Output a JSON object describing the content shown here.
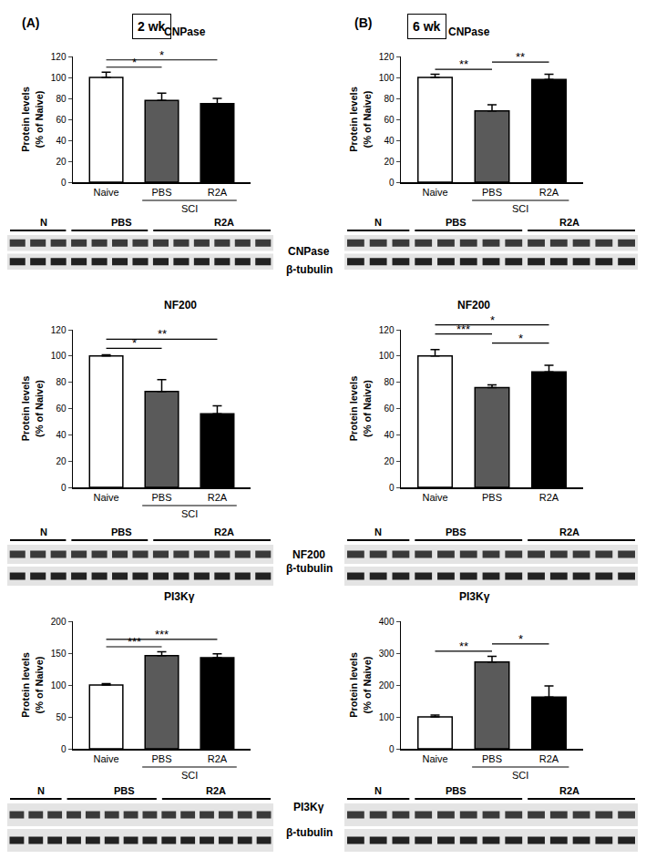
{
  "panels": [
    {
      "label": "(A)",
      "title": "2 wk"
    },
    {
      "label": "(B)",
      "title": "6 wk"
    }
  ],
  "chart_data": [
    {
      "type": "bar",
      "title": "CNPase",
      "categories": [
        "Naive",
        "PBS",
        "R2A"
      ],
      "group": {
        "label": "SCI",
        "members": [
          "PBS",
          "R2A"
        ]
      },
      "values": [
        100,
        78,
        75
      ],
      "errors": [
        5,
        7,
        5
      ],
      "colors": [
        "#ffffff",
        "#5a5a5a",
        "#000000"
      ],
      "y_label": [
        "Protein levels",
        "(% of Naive)"
      ],
      "ylim": [
        0,
        120
      ],
      "yticks": [
        0,
        20,
        40,
        60,
        80,
        100,
        120
      ],
      "significance": [
        {
          "between": [
            "Naive",
            "PBS"
          ],
          "label": "*"
        },
        {
          "between": [
            "Naive",
            "R2A"
          ],
          "label": "*"
        }
      ],
      "blot": {
        "lanes": [
          {
            "label": "N",
            "count": 3
          },
          {
            "label": "PBS",
            "count": 4
          },
          {
            "label": "R2A",
            "count": 6
          }
        ],
        "bands": [
          "CNPase",
          "β-tubulin"
        ]
      }
    },
    {
      "type": "bar",
      "title": "NF200",
      "categories": [
        "Naive",
        "PBS",
        "R2A"
      ],
      "group": {
        "label": "SCI",
        "members": [
          "PBS",
          "R2A"
        ]
      },
      "values": [
        100,
        73,
        56
      ],
      "errors": [
        1,
        9,
        6
      ],
      "colors": [
        "#ffffff",
        "#5a5a5a",
        "#000000"
      ],
      "y_label": [
        "Protein levels",
        "(% of Naive)"
      ],
      "ylim": [
        0,
        120
      ],
      "yticks": [
        0,
        20,
        40,
        60,
        80,
        100,
        120
      ],
      "significance": [
        {
          "between": [
            "Naive",
            "PBS"
          ],
          "label": "*"
        },
        {
          "between": [
            "Naive",
            "R2A"
          ],
          "label": "**"
        }
      ],
      "blot": {
        "lanes": [
          {
            "label": "N",
            "count": 3
          },
          {
            "label": "PBS",
            "count": 4
          },
          {
            "label": "R2A",
            "count": 6
          }
        ],
        "bands": [
          "NF200",
          "β-tubulin"
        ]
      }
    },
    {
      "type": "bar",
      "title": "PI3Kγ",
      "categories": [
        "Naive",
        "PBS",
        "R2A"
      ],
      "group": {
        "label": "SCI",
        "members": [
          "PBS",
          "R2A"
        ]
      },
      "values": [
        100,
        146,
        143
      ],
      "errors": [
        2,
        6,
        6
      ],
      "colors": [
        "#ffffff",
        "#5a5a5a",
        "#000000"
      ],
      "y_label": [
        "Protein levels",
        "(% of Naive)"
      ],
      "ylim": [
        0,
        200
      ],
      "yticks": [
        0,
        50,
        100,
        150,
        200
      ],
      "significance": [
        {
          "between": [
            "Naive",
            "PBS"
          ],
          "label": "***"
        },
        {
          "between": [
            "Naive",
            "R2A"
          ],
          "label": "***"
        }
      ],
      "blot": {
        "lanes": [
          {
            "label": "N",
            "count": 3
          },
          {
            "label": "PBS",
            "count": 5
          },
          {
            "label": "R2A",
            "count": 6
          }
        ],
        "bands": [
          "PI3Kγ",
          "β-tubulin"
        ]
      }
    },
    {
      "type": "bar",
      "title": "CNPase",
      "categories": [
        "Naive",
        "PBS",
        "R2A"
      ],
      "group": {
        "label": "SCI",
        "members": [
          "PBS",
          "R2A"
        ]
      },
      "values": [
        100,
        68,
        98
      ],
      "errors": [
        3,
        6,
        5
      ],
      "colors": [
        "#ffffff",
        "#5a5a5a",
        "#000000"
      ],
      "y_label": [
        "Protein levels",
        "(% of Naive)"
      ],
      "ylim": [
        0,
        120
      ],
      "yticks": [
        0,
        20,
        40,
        60,
        80,
        100,
        120
      ],
      "significance": [
        {
          "between": [
            "Naive",
            "PBS"
          ],
          "label": "**"
        },
        {
          "between": [
            "PBS",
            "R2A"
          ],
          "label": "**"
        }
      ],
      "blot": {
        "lanes": [
          {
            "label": "N",
            "count": 3
          },
          {
            "label": "PBS",
            "count": 5
          },
          {
            "label": "R2A",
            "count": 5
          }
        ],
        "rows": 2
      }
    },
    {
      "type": "bar",
      "title": "NF200",
      "categories": [
        "Naive",
        "PBS",
        "R2A"
      ],
      "values": [
        100,
        76,
        88
      ],
      "errors": [
        5,
        2,
        5
      ],
      "colors": [
        "#ffffff",
        "#5a5a5a",
        "#000000"
      ],
      "y_label": [
        "Protein levels",
        "(% of Naive)"
      ],
      "ylim": [
        0,
        120
      ],
      "yticks": [
        0,
        20,
        40,
        60,
        80,
        100,
        120
      ],
      "significance": [
        {
          "between": [
            "PBS",
            "R2A"
          ],
          "label": "*"
        },
        {
          "between": [
            "Naive",
            "PBS"
          ],
          "label": "***"
        },
        {
          "between": [
            "Naive",
            "R2A"
          ],
          "label": "*"
        }
      ],
      "blot": {
        "lanes": [
          {
            "label": "N",
            "count": 3
          },
          {
            "label": "PBS",
            "count": 5
          },
          {
            "label": "R2A",
            "count": 5
          }
        ],
        "rows": 2
      }
    },
    {
      "type": "bar",
      "title": "PI3Kγ",
      "categories": [
        "Naive",
        "PBS",
        "R2A"
      ],
      "group": {
        "label": "SCI",
        "members": [
          "PBS",
          "R2A"
        ]
      },
      "values": [
        100,
        272,
        162
      ],
      "errors": [
        6,
        18,
        35
      ],
      "colors": [
        "#ffffff",
        "#5a5a5a",
        "#000000"
      ],
      "y_label": [
        "Protein levels",
        "(% of Naive)"
      ],
      "ylim": [
        0,
        400
      ],
      "yticks": [
        0,
        100,
        200,
        300,
        400
      ],
      "significance": [
        {
          "between": [
            "Naive",
            "PBS"
          ],
          "label": "**"
        },
        {
          "between": [
            "PBS",
            "R2A"
          ],
          "label": "*"
        }
      ],
      "blot": {
        "lanes": [
          {
            "label": "N",
            "count": 3
          },
          {
            "label": "PBS",
            "count": 5
          },
          {
            "label": "R2A",
            "count": 5
          }
        ],
        "rows": 2
      }
    }
  ]
}
